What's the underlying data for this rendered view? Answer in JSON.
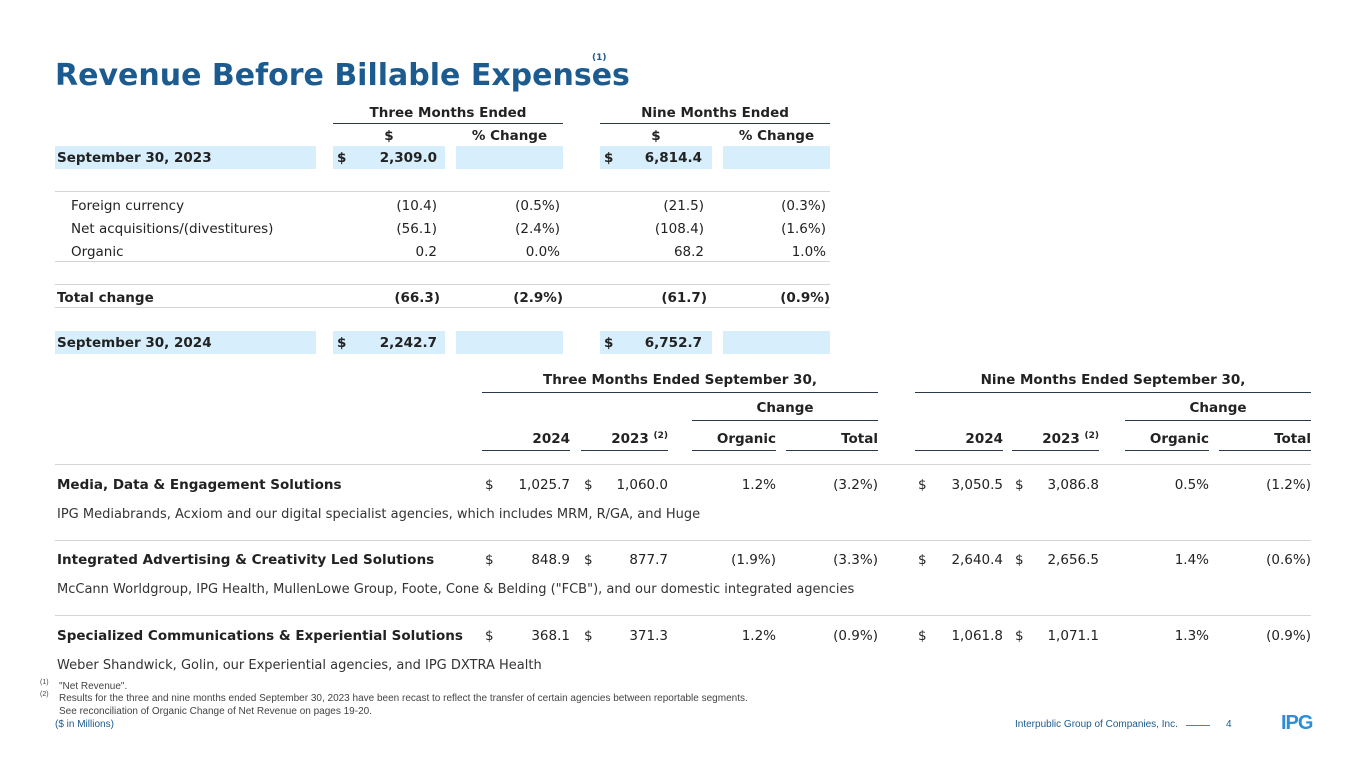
{
  "title": "Revenue Before Billable Expenses",
  "title_note": "(1)",
  "top": {
    "group_three": "Three Months Ended",
    "group_nine": "Nine Months Ended",
    "col_dollar": "$",
    "col_pct": "% Change",
    "currency": "$",
    "start": {
      "label": "September 30, 2023",
      "three": "2,309.0",
      "nine": "6,814.4"
    },
    "rows": [
      {
        "label": "Foreign currency",
        "three": "(10.4)",
        "three_pct": "(0.5%)",
        "nine": "(21.5)",
        "nine_pct": "(0.3%)"
      },
      {
        "label": "Net acquisitions/(divestitures)",
        "three": "(56.1)",
        "three_pct": "(2.4%)",
        "nine": "(108.4)",
        "nine_pct": "(1.6%)"
      },
      {
        "label": "Organic",
        "three": "0.2",
        "three_pct": "0.0%",
        "nine": "68.2",
        "nine_pct": "1.0%"
      }
    ],
    "total": {
      "label": "Total change",
      "three": "(66.3)",
      "three_pct": "(2.9%)",
      "nine": "(61.7)",
      "nine_pct": "(0.9%)"
    },
    "end": {
      "label": "September 30, 2024",
      "three": "2,242.7",
      "nine": "6,752.7"
    }
  },
  "seg": {
    "group_three": "Three Months Ended September 30,",
    "group_nine": "Nine Months Ended September 30,",
    "change": "Change",
    "y2024": "2024",
    "y2023": "2023",
    "note2": "(2)",
    "organic": "Organic",
    "total": "Total",
    "currency": "$",
    "rows": [
      {
        "name": "Media, Data & Engagement Solutions",
        "desc": "IPG Mediabrands, Acxiom and our digital specialist agencies, which includes MRM, R/GA, and Huge",
        "t24": "1,025.7",
        "t23": "1,060.0",
        "t_org": "1.2%",
        "t_tot": "(3.2%)",
        "n24": "3,050.5",
        "n23": "3,086.8",
        "n_org": "0.5%",
        "n_tot": "(1.2%)"
      },
      {
        "name": "Integrated Advertising & Creativity Led Solutions",
        "desc": "McCann Worldgroup, IPG Health, MullenLowe Group, Foote, Cone & Belding (\"FCB\"), and our domestic integrated agencies",
        "t24": "848.9",
        "t23": "877.7",
        "t_org": "(1.9%)",
        "t_tot": "(3.3%)",
        "n24": "2,640.4",
        "n23": "2,656.5",
        "n_org": "1.4%",
        "n_tot": "(0.6%)"
      },
      {
        "name": "Specialized Communications & Experiential Solutions",
        "desc": "Weber Shandwick, Golin, our Experiential agencies, and IPG DXTRA Health",
        "t24": "368.1",
        "t23": "371.3",
        "t_org": "1.2%",
        "t_tot": "(0.9%)",
        "n24": "1,061.8",
        "n23": "1,071.1",
        "n_org": "1.3%",
        "n_tot": "(0.9%)"
      }
    ]
  },
  "footnotes": {
    "n1_mark": "(1)",
    "n1_text": "\"Net Revenue\".",
    "n2_mark": "(2)",
    "n2_text": "Results for the three and nine months ended September 30, 2023 have been recast to reflect the transfer of certain agencies between reportable segments.",
    "n3_text": "See reconciliation of Organic Change of Net Revenue on pages 19-20.",
    "units": "($ in Millions)"
  },
  "footer": {
    "company": "Interpublic Group of Companies, Inc.",
    "page": "4",
    "logo": "IPG"
  },
  "colors": {
    "title": "#1b5b8f",
    "highlight": "#d7eefc",
    "logo": "#2a8fd6"
  }
}
